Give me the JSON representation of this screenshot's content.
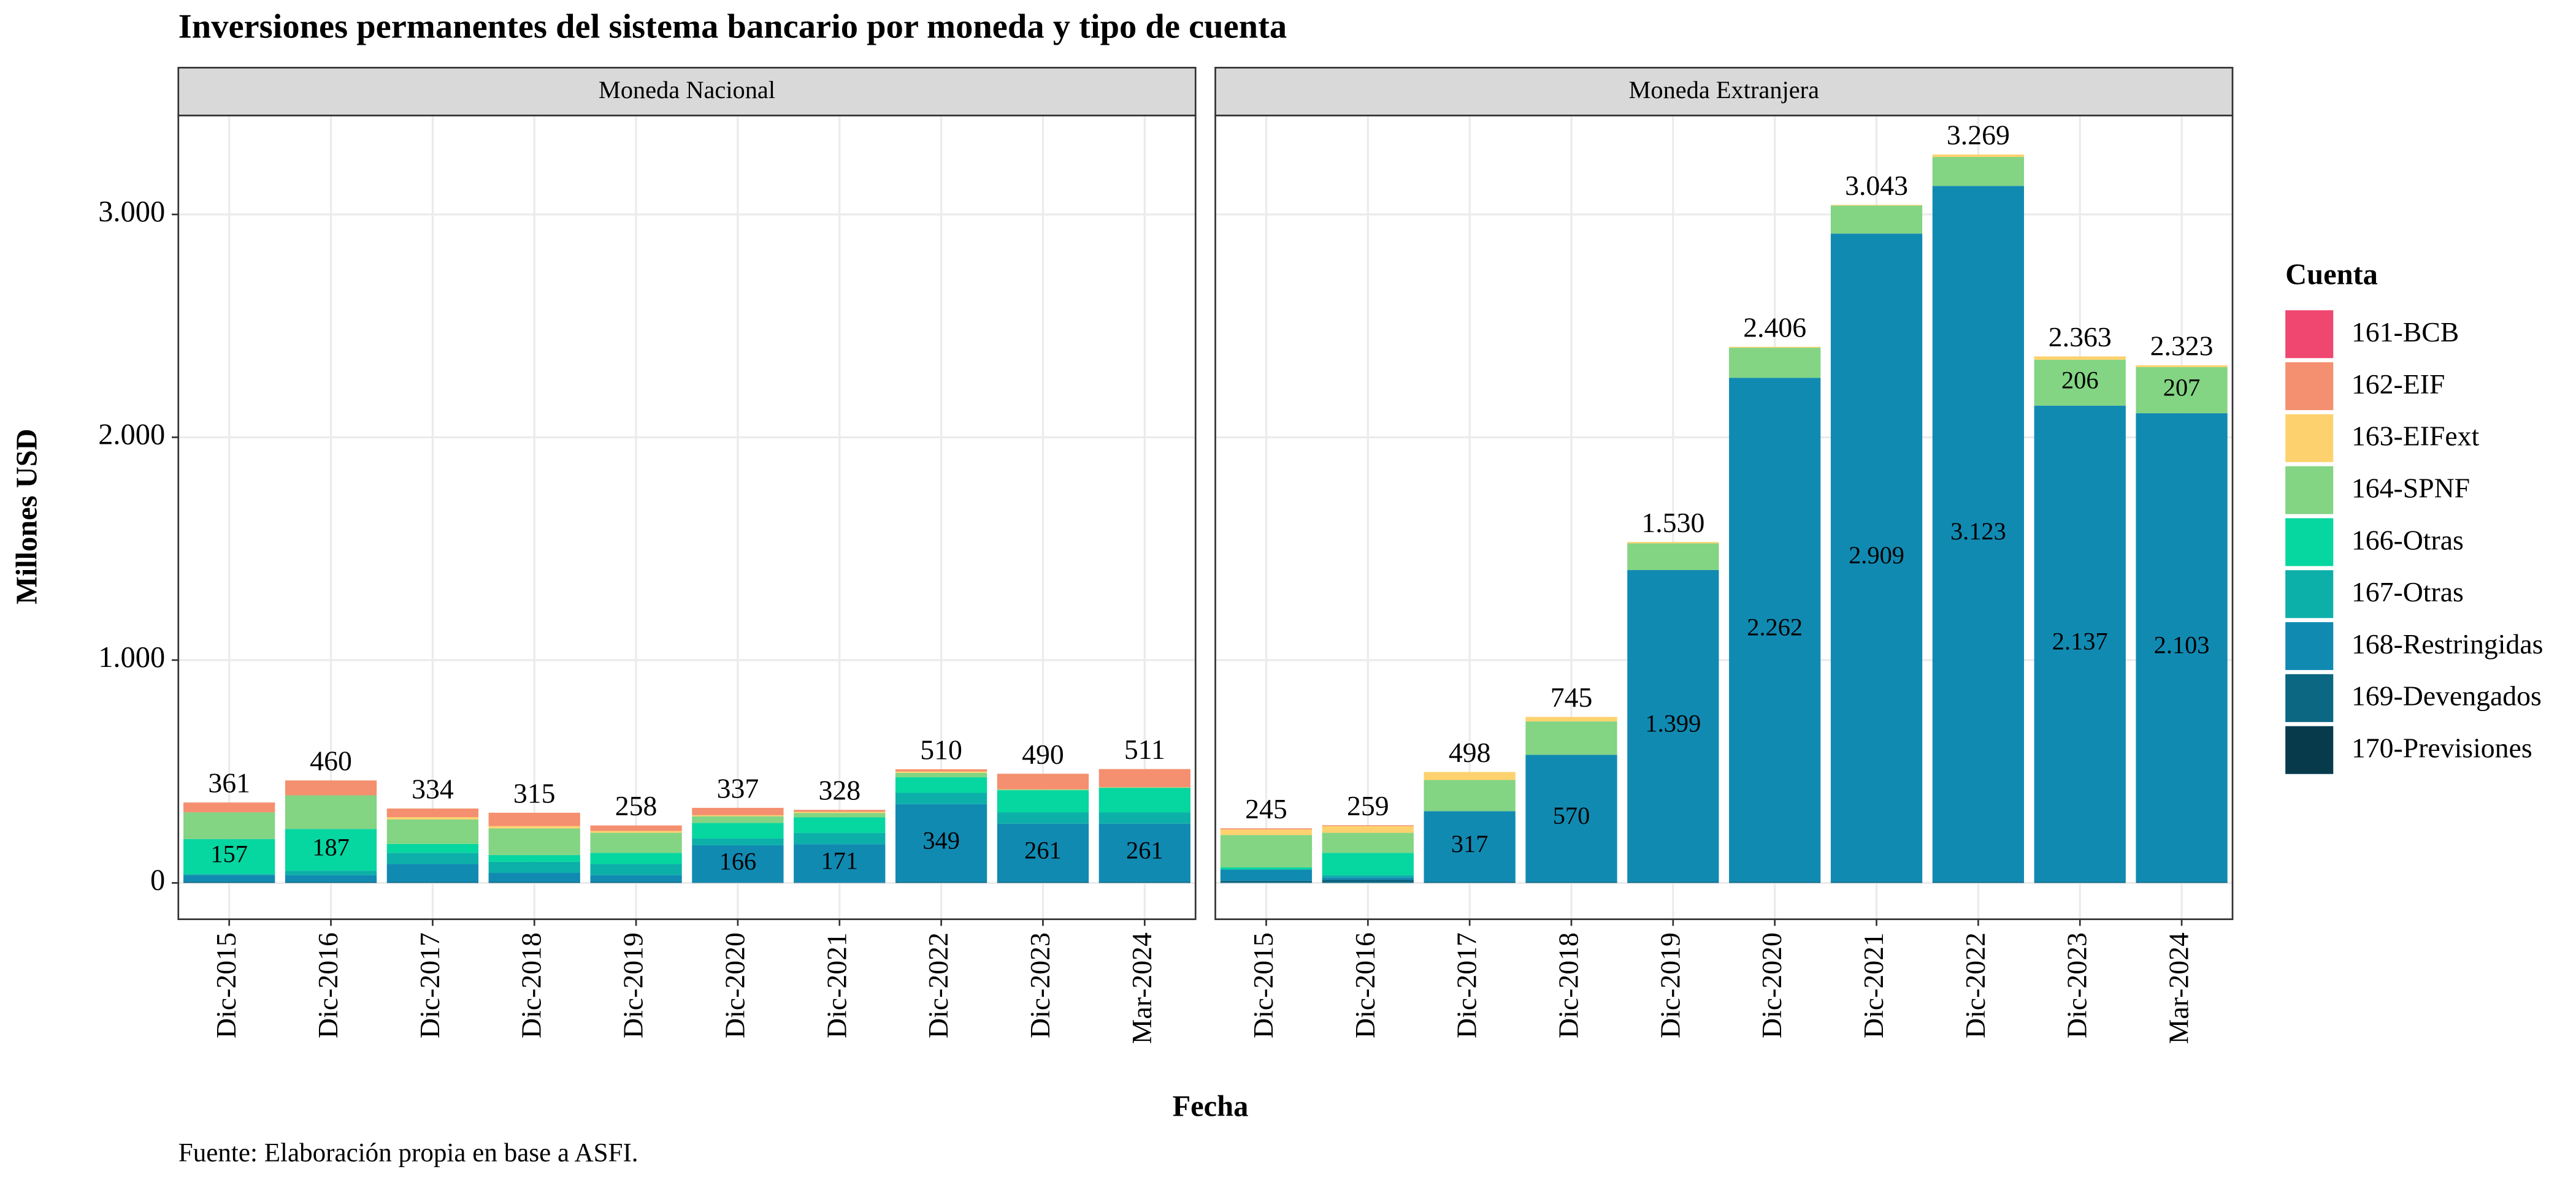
{
  "chart_data": {
    "type": "bar",
    "stacked": true,
    "title": "Inversiones permanentes del sistema bancario por moneda y tipo de cuenta",
    "xlabel": "Fecha",
    "ylabel": "Millones USD",
    "caption": "Fuente: Elaboración propia en base a ASFI.",
    "legend_title": "Cuenta",
    "grid": true,
    "ylim": [
      -163,
      3444
    ],
    "yticks": [
      0,
      {
        "value": 1000,
        "label": "1.000"
      },
      {
        "value": 2000,
        "label": "2.000"
      },
      {
        "value": 3000,
        "label": "3.000"
      }
    ],
    "series": [
      {
        "name": "161-BCB",
        "color": "#ef476f"
      },
      {
        "name": "162-EIF",
        "color": "#f4906f"
      },
      {
        "name": "163-EIFext",
        "color": "#fdd26e"
      },
      {
        "name": "164-SPNF",
        "color": "#83d483"
      },
      {
        "name": "166-Otras",
        "color": "#06d6a0"
      },
      {
        "name": "167-Otras",
        "color": "#0cb0a9"
      },
      {
        "name": "168-Restringidas",
        "color": "#118ab2"
      },
      {
        "name": "169-Devengados",
        "color": "#0c6783"
      },
      {
        "name": "170-Previsiones",
        "color": "#073b4c"
      }
    ],
    "panels": [
      {
        "title": "Moneda Nacional",
        "categories": [
          "Dic-2015",
          "Dic-2016",
          "Dic-2017",
          "Dic-2018",
          "Dic-2019",
          "Dic-2020",
          "Dic-2021",
          "Dic-2022",
          "Dic-2023",
          "Mar-2024"
        ],
        "values": [
          [
            0,
            0,
            0,
            0,
            0,
            0,
            0,
            0,
            0,
            0
          ],
          [
            44,
            67,
            39,
            60,
            25,
            33,
            9,
            10,
            70,
            81
          ],
          [
            0,
            0,
            10,
            10,
            8,
            5,
            5,
            6,
            1,
            1
          ],
          [
            120,
            151,
            110,
            120,
            90,
            30,
            20,
            20,
            3,
            3
          ],
          [
            157,
            187,
            40,
            30,
            50,
            70,
            70,
            70,
            100,
            110
          ],
          [
            5,
            20,
            50,
            50,
            50,
            30,
            50,
            50,
            50,
            50
          ],
          [
            30,
            30,
            80,
            40,
            30,
            166,
            171,
            349,
            261,
            261
          ],
          [
            5,
            5,
            5,
            5,
            5,
            3,
            3,
            5,
            5,
            5
          ],
          [
            0,
            0,
            0,
            0,
            0,
            0,
            0,
            0,
            0,
            0
          ]
        ],
        "value_labels": [
          [
            null,
            null,
            null,
            null,
            null,
            null,
            null,
            null,
            null,
            null
          ],
          [
            null,
            null,
            null,
            null,
            null,
            null,
            null,
            null,
            null,
            null
          ],
          [
            null,
            null,
            null,
            null,
            null,
            null,
            null,
            null,
            null,
            null
          ],
          [
            null,
            null,
            null,
            null,
            null,
            null,
            null,
            null,
            null,
            null
          ],
          [
            "157",
            "187",
            null,
            null,
            null,
            null,
            null,
            null,
            null,
            null
          ],
          [
            null,
            null,
            null,
            null,
            null,
            null,
            null,
            null,
            null,
            null
          ],
          [
            null,
            null,
            null,
            null,
            null,
            "166",
            "171",
            "349",
            "261",
            "261"
          ],
          [
            null,
            null,
            null,
            null,
            null,
            null,
            null,
            null,
            null,
            null
          ],
          [
            null,
            null,
            null,
            null,
            null,
            null,
            null,
            null,
            null,
            null
          ]
        ],
        "totals": [
          361,
          460,
          334,
          315,
          258,
          337,
          328,
          510,
          490,
          511
        ]
      },
      {
        "title": "Moneda Extranjera",
        "categories": [
          "Dic-2015",
          "Dic-2016",
          "Dic-2017",
          "Dic-2018",
          "Dic-2019",
          "Dic-2020",
          "Dic-2021",
          "Dic-2022",
          "Dic-2023",
          "Mar-2024"
        ],
        "values": [
          [
            0,
            0,
            0,
            0,
            0,
            0,
            0,
            0,
            0,
            0
          ],
          [
            5,
            4,
            0,
            0,
            0,
            0,
            0,
            0,
            0,
            0
          ],
          [
            25,
            30,
            36,
            20,
            6,
            4,
            3,
            11,
            15,
            8
          ],
          [
            145,
            90,
            140,
            150,
            120,
            135,
            126,
            130,
            206,
            207
          ],
          [
            10,
            100,
            0,
            0,
            0,
            0,
            0,
            0,
            0,
            0
          ],
          [
            0,
            10,
            0,
            0,
            0,
            0,
            0,
            0,
            0,
            0
          ],
          [
            50,
            10,
            317,
            570,
            1399,
            2262,
            2909,
            3123,
            2137,
            2103
          ],
          [
            10,
            15,
            5,
            5,
            5,
            5,
            5,
            5,
            5,
            5
          ],
          [
            0,
            0,
            0,
            0,
            0,
            0,
            0,
            0,
            0,
            0
          ]
        ],
        "value_labels": [
          [
            null,
            null,
            null,
            null,
            null,
            null,
            null,
            null,
            null,
            null
          ],
          [
            null,
            null,
            null,
            null,
            null,
            null,
            null,
            null,
            null,
            null
          ],
          [
            null,
            null,
            null,
            null,
            null,
            null,
            null,
            null,
            null,
            null
          ],
          [
            null,
            null,
            null,
            null,
            null,
            null,
            null,
            null,
            "206",
            "207"
          ],
          [
            null,
            null,
            null,
            null,
            null,
            null,
            null,
            null,
            null,
            null
          ],
          [
            null,
            null,
            null,
            null,
            null,
            null,
            null,
            null,
            null,
            null
          ],
          [
            null,
            null,
            "317",
            "570",
            "1.399",
            "2.262",
            "2.909",
            "3.123",
            "2.137",
            "2.103"
          ],
          [
            null,
            null,
            null,
            null,
            null,
            null,
            null,
            null,
            null,
            null
          ],
          [
            null,
            null,
            null,
            null,
            null,
            null,
            null,
            null,
            null,
            null
          ]
        ],
        "totals": [
          245,
          259,
          498,
          745,
          1530,
          2406,
          3043,
          3269,
          2363,
          2323
        ],
        "total_labels": [
          "245",
          "259",
          "498",
          "745",
          "1.530",
          "2.406",
          "3.043",
          "3.269",
          "2.363",
          "2.323"
        ]
      }
    ]
  }
}
